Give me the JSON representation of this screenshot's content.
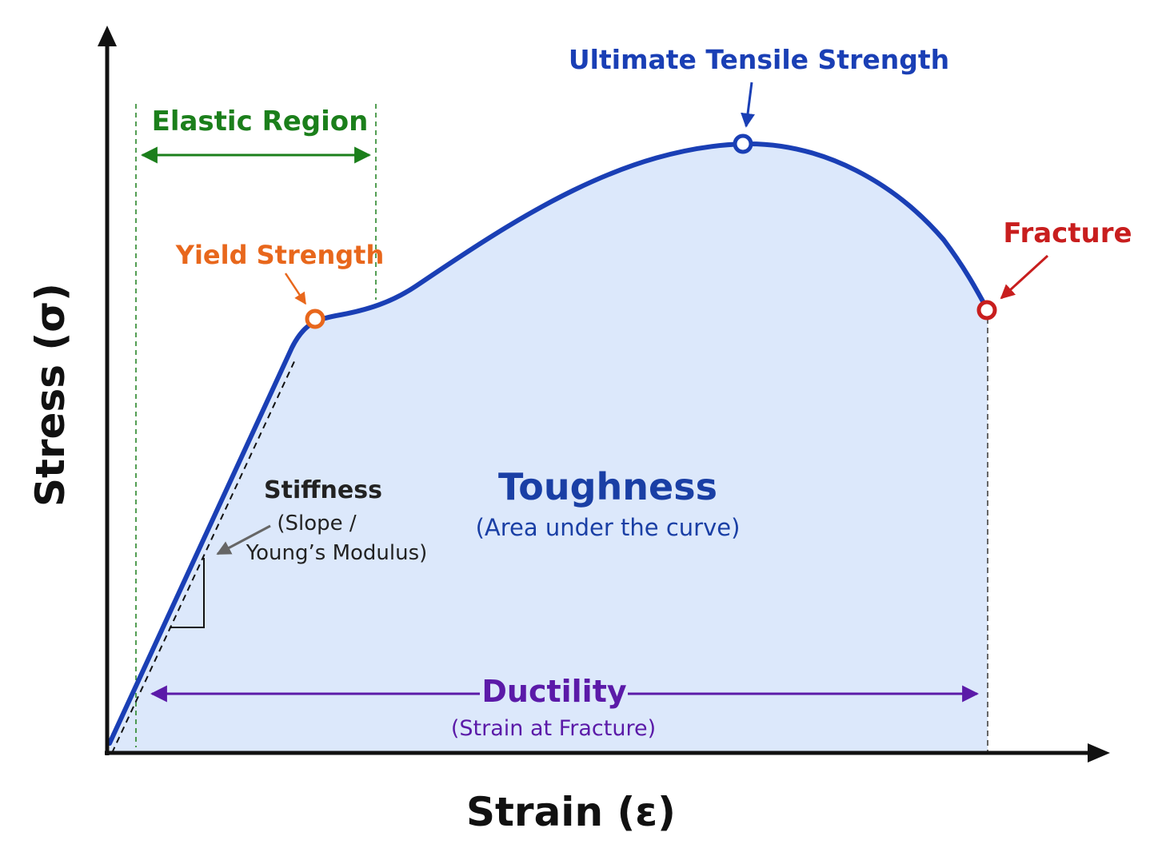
{
  "axes": {
    "x_title": "Strain (ε)",
    "y_title": "Stress (σ)"
  },
  "labels": {
    "elastic_region": "Elastic Region",
    "yield_strength": "Yield Strength",
    "ultimate_tensile_strength": "Ultimate Tensile Strength",
    "fracture": "Fracture",
    "stiffness_title": "Stiffness",
    "stiffness_line1": "(Slope /",
    "stiffness_line2": "Young’s Modulus)",
    "toughness_title": "Toughness",
    "toughness_subtitle": "(Area under the curve)",
    "ductility_title": "Ductility",
    "ductility_subtitle": "(Strain at Fracture)"
  },
  "colors": {
    "curve": "#1a3fb5",
    "fill": "#dce8fb",
    "elastic": "#1b7f1b",
    "yield": "#e8671c",
    "uts": "#1a3fb5",
    "fracture": "#c81e1e",
    "ductility": "#5b1aa8",
    "toughness": "#1a3fa5",
    "stiffness_text": "#222222",
    "axis": "#111111"
  }
}
